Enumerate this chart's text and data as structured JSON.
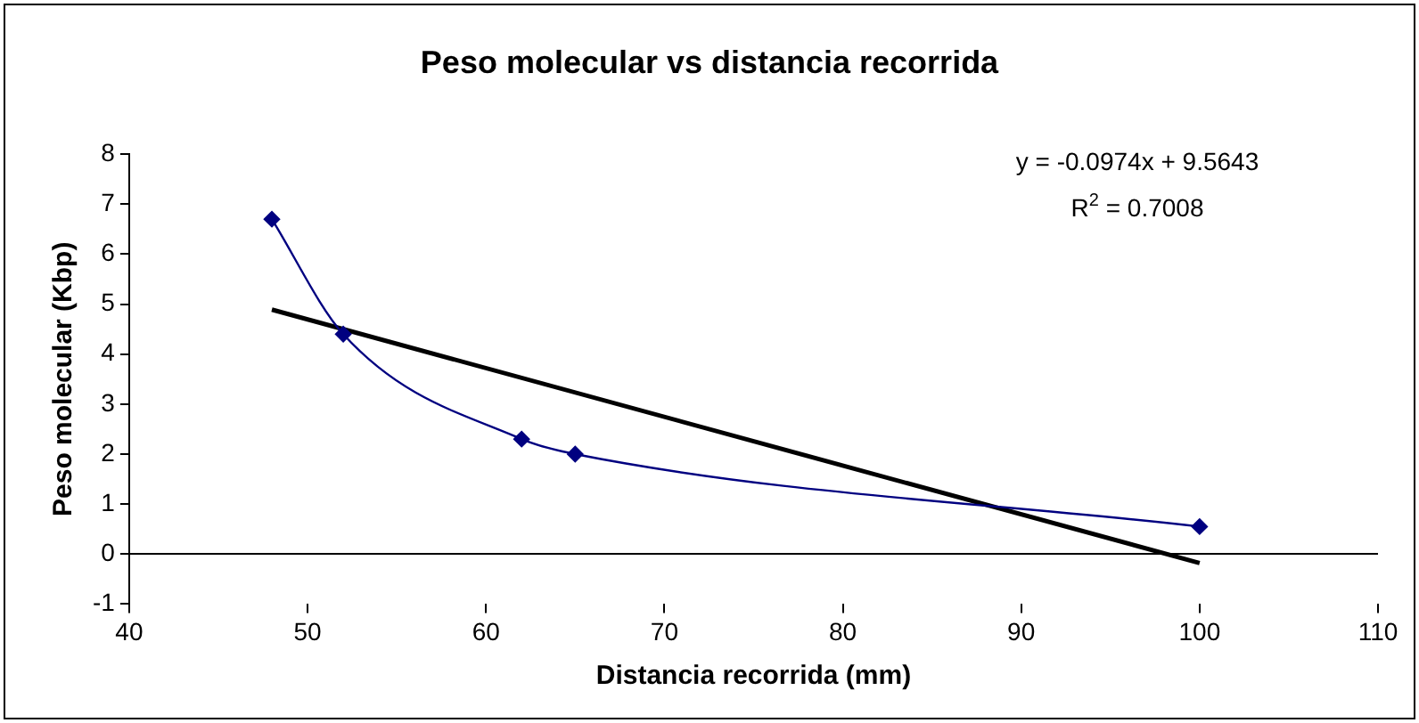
{
  "chart_data": {
    "type": "line",
    "title": "Peso molecular vs distancia recorrida",
    "xlabel": "Distancia recorrida (mm)",
    "ylabel": "Peso molecular (Kbp)",
    "x": [
      48,
      52,
      62,
      65,
      100
    ],
    "series": [
      {
        "color": "#000080",
        "values": [
          6.7,
          4.4,
          2.3,
          2.0,
          0.55
        ],
        "marker": "diamond"
      },
      {
        "type": "line",
        "color": "#000000",
        "x": [
          48,
          100
        ],
        "values": [
          4.89,
          -0.18
        ],
        "marker": "none"
      }
    ],
    "xlim": [
      40,
      110
    ],
    "xticks": [
      40,
      50,
      60,
      70,
      80,
      90,
      100,
      110
    ],
    "ylim": [
      -1,
      8
    ],
    "yticks": [
      -1,
      0,
      1,
      2,
      3,
      4,
      5,
      6,
      7,
      8
    ],
    "annotations": [
      "y = -0.0974x + 9.5643",
      "R$^{2}$ = 0.7008"
    ],
    "grid": false,
    "legend": false
  }
}
